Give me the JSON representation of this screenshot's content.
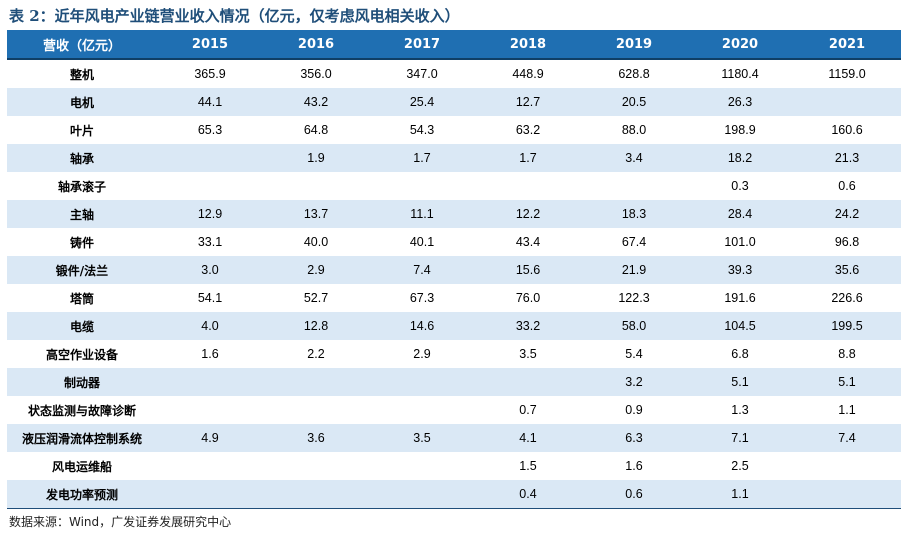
{
  "title": "表 2：近年风电产业链营业收入情况（亿元，仅考虑风电相关收入）",
  "table": {
    "header_label": "营收（亿元）",
    "years": [
      "2015",
      "2016",
      "2017",
      "2018",
      "2019",
      "2020",
      "2021"
    ],
    "rows": [
      {
        "label": "整机",
        "values": [
          "365.9",
          "356.0",
          "347.0",
          "448.9",
          "628.8",
          "1180.4",
          "1159.0"
        ]
      },
      {
        "label": "电机",
        "values": [
          "44.1",
          "43.2",
          "25.4",
          "12.7",
          "20.5",
          "26.3",
          ""
        ]
      },
      {
        "label": "叶片",
        "values": [
          "65.3",
          "64.8",
          "54.3",
          "63.2",
          "88.0",
          "198.9",
          "160.6"
        ]
      },
      {
        "label": "轴承",
        "values": [
          "",
          "1.9",
          "1.7",
          "1.7",
          "3.4",
          "18.2",
          "21.3"
        ]
      },
      {
        "label": "轴承滚子",
        "values": [
          "",
          "",
          "",
          "",
          "",
          "0.3",
          "0.6"
        ]
      },
      {
        "label": "主轴",
        "values": [
          "12.9",
          "13.7",
          "11.1",
          "12.2",
          "18.3",
          "28.4",
          "24.2"
        ]
      },
      {
        "label": "铸件",
        "values": [
          "33.1",
          "40.0",
          "40.1",
          "43.4",
          "67.4",
          "101.0",
          "96.8"
        ]
      },
      {
        "label": "锻件/法兰",
        "values": [
          "3.0",
          "2.9",
          "7.4",
          "15.6",
          "21.9",
          "39.3",
          "35.6"
        ]
      },
      {
        "label": "塔筒",
        "values": [
          "54.1",
          "52.7",
          "67.3",
          "76.0",
          "122.3",
          "191.6",
          "226.6"
        ]
      },
      {
        "label": "电缆",
        "values": [
          "4.0",
          "12.8",
          "14.6",
          "33.2",
          "58.0",
          "104.5",
          "199.5"
        ]
      },
      {
        "label": "高空作业设备",
        "values": [
          "1.6",
          "2.2",
          "2.9",
          "3.5",
          "5.4",
          "6.8",
          "8.8"
        ]
      },
      {
        "label": "制动器",
        "values": [
          "",
          "",
          "",
          "",
          "3.2",
          "5.1",
          "5.1"
        ]
      },
      {
        "label": "状态监测与故障诊断",
        "values": [
          "",
          "",
          "",
          "0.7",
          "0.9",
          "1.3",
          "1.1"
        ]
      },
      {
        "label": "液压润滑流体控制系统",
        "values": [
          "4.9",
          "3.6",
          "3.5",
          "4.1",
          "6.3",
          "7.1",
          "7.4"
        ]
      },
      {
        "label": "风电运维船",
        "values": [
          "",
          "",
          "",
          "1.5",
          "1.6",
          "2.5",
          ""
        ]
      },
      {
        "label": "发电功率预测",
        "values": [
          "",
          "",
          "",
          "0.4",
          "0.6",
          "1.1",
          ""
        ]
      }
    ]
  },
  "source": "数据来源：Wind，广发证券发展研究中心"
}
